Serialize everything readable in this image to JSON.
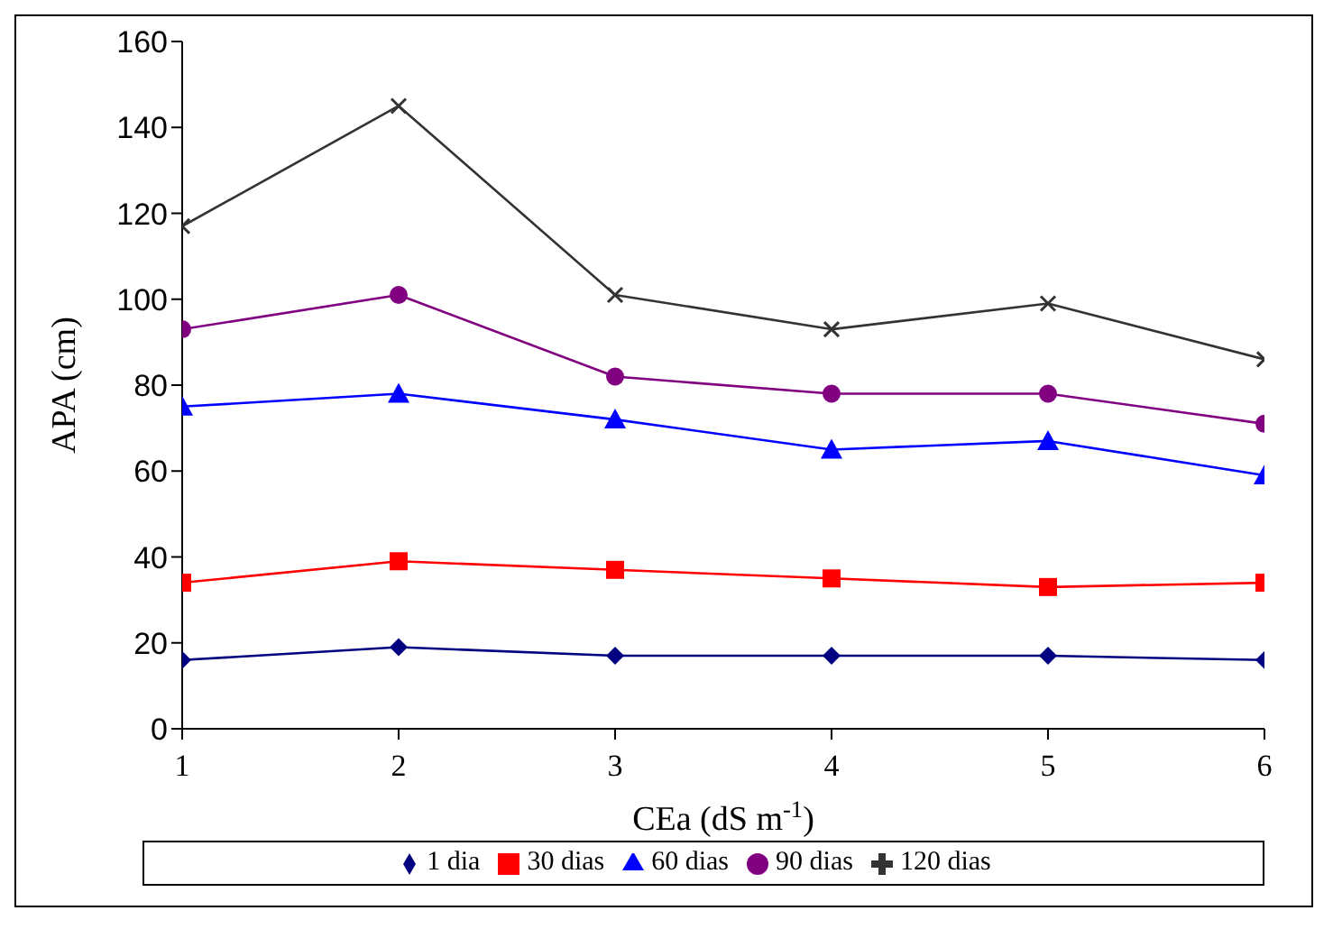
{
  "chart_data": {
    "type": "line",
    "xlabel": "CEa (dS m$^{-1}$)",
    "ylabel": "APA (cm)",
    "x": [
      1,
      2,
      3,
      4,
      5,
      6
    ],
    "xlim": [
      1,
      6
    ],
    "xticks": [
      1,
      2,
      3,
      4,
      5,
      6
    ],
    "ylim": [
      0,
      160
    ],
    "yticks": [
      0,
      20,
      40,
      60,
      80,
      100,
      120,
      140,
      160
    ],
    "grid": false,
    "legend": "bottom",
    "line_style": "solid",
    "series": [
      {
        "name": "1 dia",
        "color": "#000080",
        "marker": "diamond",
        "values": [
          16,
          19,
          17,
          17,
          17,
          16
        ]
      },
      {
        "name": "30 dias",
        "color": "#ff0000",
        "marker": "square",
        "values": [
          34,
          39,
          37,
          35,
          33,
          34
        ]
      },
      {
        "name": "60 dias",
        "color": "#0000ff",
        "marker": "triangle",
        "values": [
          75,
          78,
          72,
          65,
          67,
          59
        ]
      },
      {
        "name": "90 dias",
        "color": "#800080",
        "marker": "circle",
        "values": [
          93,
          101,
          82,
          78,
          78,
          71
        ]
      },
      {
        "name": "120 dias",
        "color": "#333333",
        "marker": "cross",
        "values": [
          117,
          145,
          101,
          93,
          99,
          86
        ]
      }
    ]
  }
}
